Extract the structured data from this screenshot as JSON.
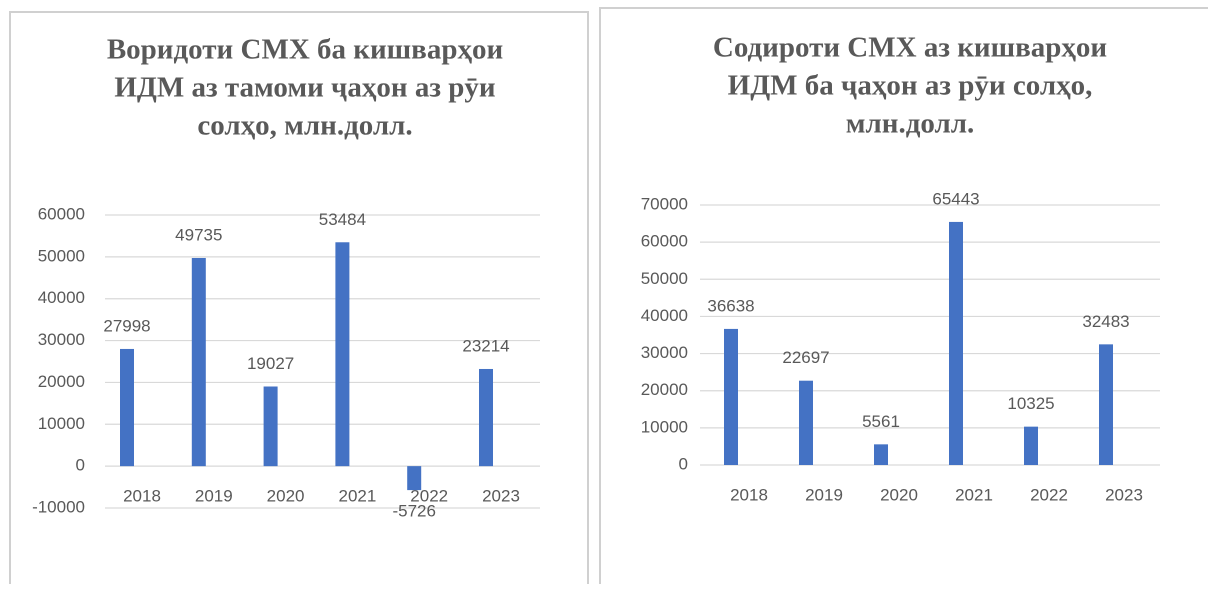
{
  "chart_data": [
    {
      "type": "bar",
      "title": [
        "Воридоти СМХ  ба кишварҳои",
        "ИДМ аз тамоми ҷаҳон аз рӯи",
        "солҳо, млн.долл."
      ],
      "categories": [
        "2018",
        "2019",
        "2020",
        "2021",
        "2022",
        "2023"
      ],
      "values": [
        27998,
        49735,
        19027,
        53484,
        -5726,
        23214
      ],
      "color": "#4472c4",
      "ylim": [
        -10000,
        60000
      ],
      "yticks": [
        -10000,
        0,
        10000,
        20000,
        30000,
        40000,
        50000,
        60000
      ],
      "grid": true
    },
    {
      "type": "bar",
      "title": [
        "Содироти СМХ аз кишварҳои",
        "ИДМ ба ҷаҳон аз рӯи солҳо,",
        "млн.долл."
      ],
      "categories": [
        "2018",
        "2019",
        "2020",
        "2021",
        "2022",
        "2023"
      ],
      "values": [
        36638,
        22697,
        5561,
        65443,
        10325,
        32483
      ],
      "color": "#4472c4",
      "ylim": [
        0,
        70000
      ],
      "yticks": [
        0,
        10000,
        20000,
        30000,
        40000,
        50000,
        60000,
        70000
      ],
      "grid": true
    }
  ]
}
